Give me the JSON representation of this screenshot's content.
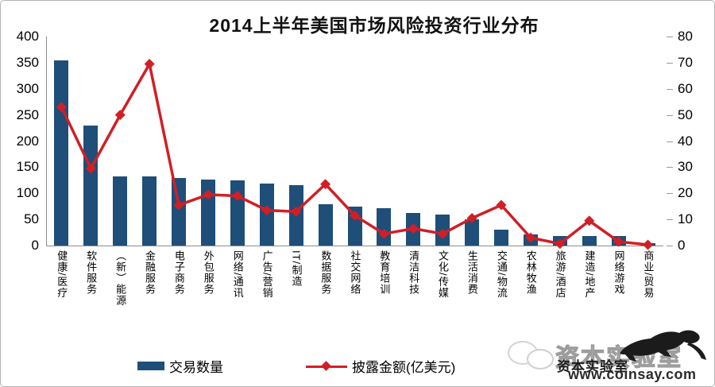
{
  "title": "2014上半年美国市场风险投资行业分布",
  "colors": {
    "bar": "#1F4E79",
    "line": "#D01F26"
  },
  "chart_data": {
    "type": "bar",
    "subtype": "combo-bar-line",
    "title": "2014上半年美国市场风险投资行业分布",
    "categories": [
      "健康/医疗",
      "软件服务",
      "（新）能源",
      "金融服务",
      "电子商务",
      "外包服务",
      "网络/通讯",
      "广告/营销",
      "IT/制造",
      "数据服务",
      "社交网络",
      "教育培训",
      "清洁科技",
      "文化/传媒",
      "生活消费",
      "交通/物流",
      "农林牧渔",
      "旅游/酒店",
      "建造/地产",
      "网络游戏",
      "商业/贸易"
    ],
    "series": [
      {
        "name": "交易数量",
        "type": "bar",
        "axis": "left",
        "values": [
          355,
          230,
          132,
          132,
          129,
          126,
          124,
          118,
          115,
          79,
          74,
          71,
          63,
          60,
          50,
          31,
          22,
          19,
          18,
          19,
          5
        ]
      },
      {
        "name": "披露金额(亿美元)",
        "type": "line",
        "axis": "right",
        "values": [
          53,
          29.5,
          50,
          69.5,
          15.5,
          19.5,
          19,
          13.5,
          13,
          23.5,
          11.5,
          4.5,
          6.5,
          4.5,
          10.5,
          15.5,
          3,
          0.7,
          9.5,
          1.5,
          0.3
        ]
      }
    ],
    "left_axis": {
      "min": 0,
      "max": 400,
      "ticks": [
        400,
        350,
        300,
        250,
        200,
        150,
        100,
        50,
        0
      ]
    },
    "right_axis": {
      "min": 0,
      "max": 80,
      "ticks": [
        80,
        70,
        60,
        50,
        40,
        30,
        20,
        10,
        0
      ]
    },
    "grid": false,
    "legend_position": "bottom"
  },
  "watermark": {
    "brand": "资本实验室",
    "url": "www.coinsay.com",
    "logo": "leaping-cat"
  }
}
